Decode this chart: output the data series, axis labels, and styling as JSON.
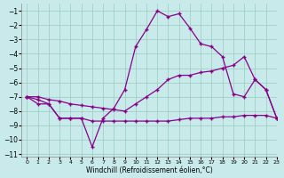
{
  "xlabel": "Windchill (Refroidissement éolien,°C)",
  "ylabel": "",
  "xlim": [
    -0.5,
    23
  ],
  "ylim": [
    -11.2,
    -0.5
  ],
  "yticks": [
    -11,
    -10,
    -9,
    -8,
    -7,
    -6,
    -5,
    -4,
    -3,
    -2,
    -1
  ],
  "xticks": [
    0,
    1,
    2,
    3,
    4,
    5,
    6,
    7,
    8,
    9,
    10,
    11,
    12,
    13,
    14,
    15,
    16,
    17,
    18,
    19,
    20,
    21,
    22,
    23
  ],
  "bg_color": "#c8eaea",
  "grid_color": "#99ccbb",
  "line_color": "#880088",
  "line1_x": [
    0,
    1,
    2,
    3,
    4,
    5,
    6,
    7,
    8,
    9,
    10,
    11,
    12,
    13,
    14,
    15,
    16,
    17,
    18,
    19,
    20,
    21,
    22,
    23
  ],
  "line1_y": [
    -7.0,
    -7.5,
    -7.5,
    -8.5,
    -8.5,
    -8.5,
    -10.5,
    -8.5,
    -7.8,
    -6.5,
    -3.5,
    -2.3,
    -1.0,
    -1.4,
    -1.2,
    -2.2,
    -3.3,
    -3.5,
    -4.2,
    -6.8,
    -7.0,
    -5.8,
    -6.5,
    -8.5
  ],
  "line2_x": [
    0,
    1,
    2,
    3,
    4,
    5,
    6,
    7,
    8,
    9,
    10,
    11,
    12,
    13,
    14,
    15,
    16,
    17,
    18,
    19,
    20,
    21,
    22,
    23
  ],
  "line2_y": [
    -7.0,
    -7.0,
    -7.2,
    -7.3,
    -7.5,
    -7.6,
    -7.7,
    -7.8,
    -7.9,
    -8.0,
    -7.5,
    -7.0,
    -6.5,
    -5.8,
    -5.5,
    -5.5,
    -5.3,
    -5.2,
    -5.0,
    -4.8,
    -4.2,
    -5.8,
    -6.5,
    -8.5
  ],
  "line3_x": [
    0,
    1,
    2,
    3,
    4,
    5,
    6,
    7,
    8,
    9,
    10,
    11,
    12,
    13,
    14,
    15,
    16,
    17,
    18,
    19,
    20,
    21,
    22,
    23
  ],
  "line3_y": [
    -7.0,
    -7.2,
    -7.5,
    -8.5,
    -8.5,
    -8.5,
    -8.7,
    -8.7,
    -8.7,
    -8.7,
    -8.7,
    -8.7,
    -8.7,
    -8.7,
    -8.6,
    -8.5,
    -8.5,
    -8.5,
    -8.4,
    -8.4,
    -8.3,
    -8.3,
    -8.3,
    -8.5
  ]
}
